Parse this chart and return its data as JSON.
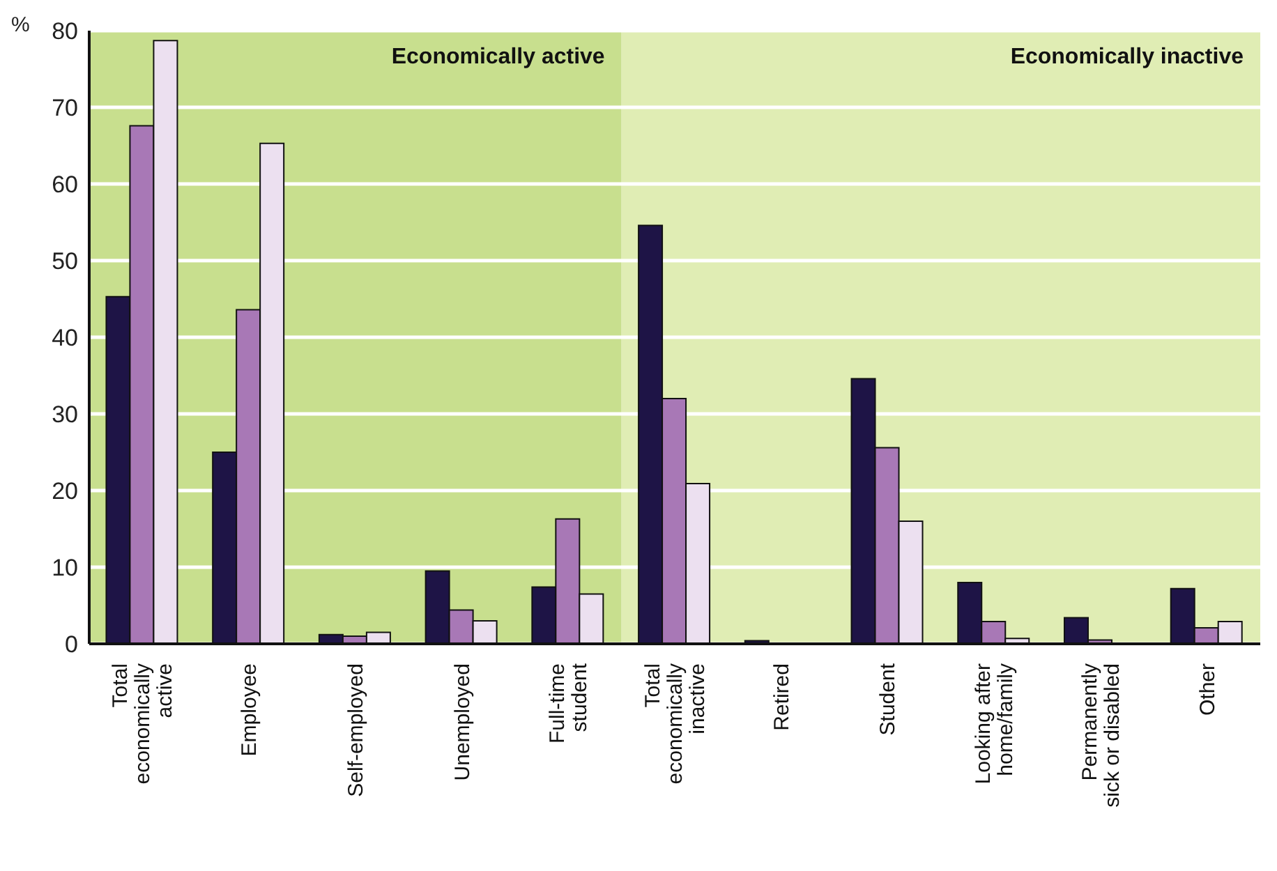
{
  "chart_data": {
    "type": "bar",
    "ylabel": "%",
    "categories": [
      "Total\neconomically\nactive",
      "Employee",
      "Self-employed",
      "Unemployed",
      "Full-time\nstudent",
      "Total\neconomically\ninactive",
      "Retired",
      "Student",
      "Looking after\nhome/family",
      "Permanently\nsick or disabled",
      "Other"
    ],
    "series": [
      {
        "color": "#1e1446",
        "values": [
          45.3,
          25,
          1.2,
          9.5,
          7.4,
          54.6,
          0.4,
          34.6,
          8,
          3.4,
          7.2
        ]
      },
      {
        "color": "#a878b6",
        "values": [
          67.6,
          43.6,
          1,
          4.4,
          16.3,
          32,
          null,
          25.6,
          2.9,
          0.5,
          2.1
        ]
      },
      {
        "color": "#ece0f0",
        "values": [
          78.7,
          65.3,
          1.5,
          3,
          6.5,
          20.9,
          null,
          16,
          0.7,
          null,
          2.9
        ]
      }
    ],
    "ylim": [
      0,
      80
    ],
    "yticks": [
      0,
      10,
      20,
      30,
      40,
      50,
      60,
      70,
      80
    ],
    "grid": "y",
    "bands": [
      {
        "axis": "x",
        "from": "Total\neconomically\nactive",
        "to": "Full-time\nstudent",
        "label": "Economically active",
        "color": "#c8df8e"
      },
      {
        "axis": "x",
        "from": "Total\neconomically\ninactive",
        "to": "Other",
        "label": "Economically inactive",
        "color": "#e0edb4"
      }
    ]
  }
}
